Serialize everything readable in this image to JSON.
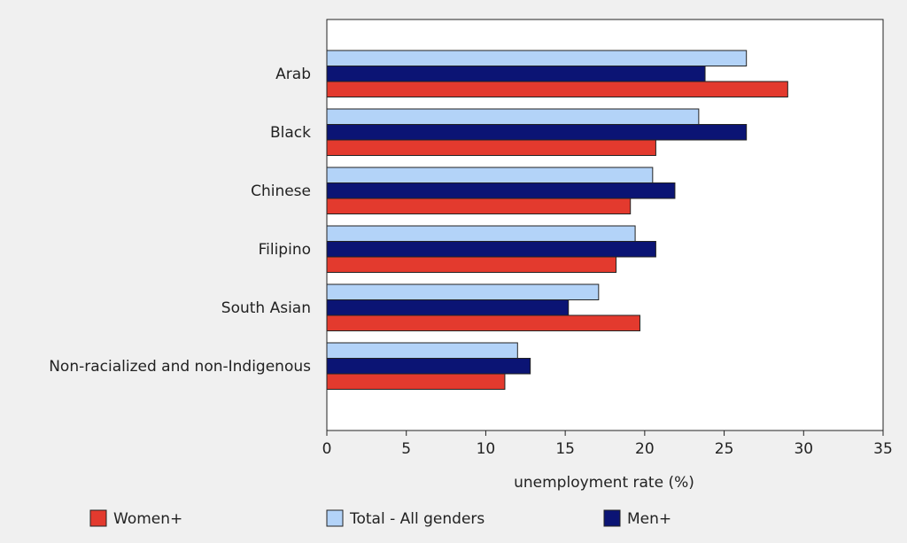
{
  "chart_data": {
    "type": "hbar",
    "x_label": "unemployment rate (%)",
    "categories": [
      "Arab",
      "Black",
      "Chinese",
      "Filipino",
      "South Asian",
      "Non-racialized and non-Indigenous"
    ],
    "series": [
      {
        "name": "Women+",
        "color": "#e33a2e",
        "values": [
          29.0,
          20.7,
          19.1,
          18.2,
          19.7,
          11.2
        ]
      },
      {
        "name": "Total - All genders",
        "color": "#b3d3f8",
        "values": [
          26.4,
          23.4,
          20.5,
          19.4,
          17.1,
          12.0
        ]
      },
      {
        "name": "Men+",
        "color": "#0b1474",
        "values": [
          23.8,
          26.4,
          21.9,
          20.7,
          15.2,
          12.8
        ]
      }
    ],
    "xlim": [
      0,
      35
    ],
    "xticks": [
      0,
      5,
      10,
      15,
      20,
      25,
      30,
      35
    ]
  }
}
